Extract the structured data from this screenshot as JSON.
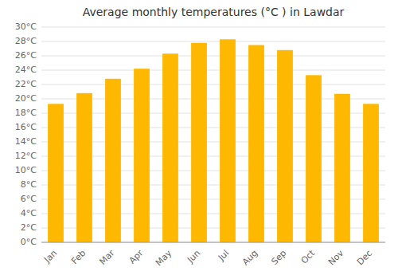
{
  "chart_data": {
    "type": "bar",
    "title": "Average monthly temperatures (°C ) in Lawdar",
    "categories": [
      "Jan",
      "Feb",
      "Mar",
      "Apr",
      "May",
      "Jun",
      "Jul",
      "Aug",
      "Sep",
      "Oct",
      "Nov",
      "Dec"
    ],
    "values": [
      19.3,
      20.8,
      22.8,
      24.2,
      26.3,
      27.8,
      28.3,
      27.5,
      26.8,
      23.3,
      20.7,
      19.3
    ],
    "color": "#FFB800",
    "ylim": [
      0,
      30
    ],
    "yticks": [
      {
        "value": 0,
        "label": "0°C"
      },
      {
        "value": 2,
        "label": "2°C"
      },
      {
        "value": 4,
        "label": "4°C"
      },
      {
        "value": 6,
        "label": "6°C"
      },
      {
        "value": 8,
        "label": "8°C"
      },
      {
        "value": 10,
        "label": "10°C"
      },
      {
        "value": 12,
        "label": "12°C"
      },
      {
        "value": 14,
        "label": "14°C"
      },
      {
        "value": 16,
        "label": "16°C"
      },
      {
        "value": 18,
        "label": "18°C"
      },
      {
        "value": 20,
        "label": "20°C"
      },
      {
        "value": 22,
        "label": "22°C"
      },
      {
        "value": 24,
        "label": "24°C"
      },
      {
        "value": 26,
        "label": "26°C"
      },
      {
        "value": 28,
        "label": "28°C"
      },
      {
        "value": 30,
        "label": "30°C"
      }
    ],
    "grid": true
  }
}
